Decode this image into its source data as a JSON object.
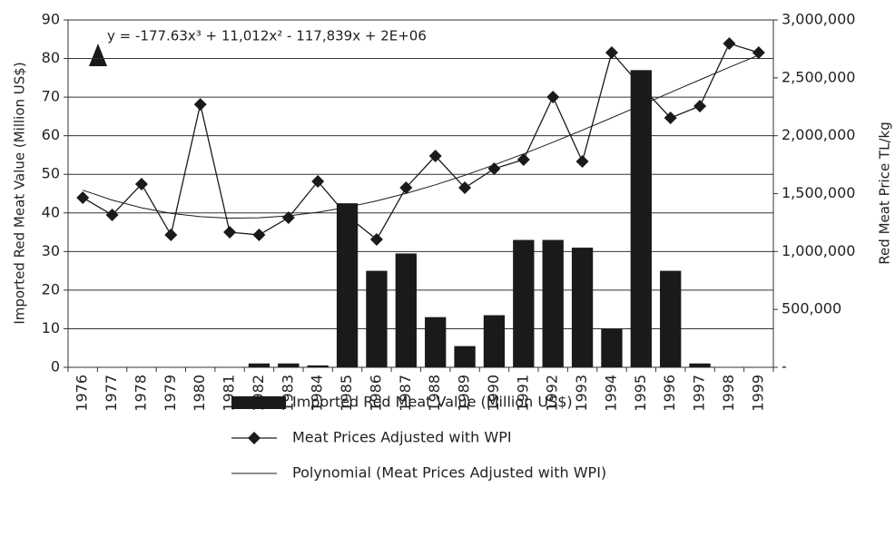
{
  "chart_data": {
    "type": "bar",
    "annotation": "y = -177.63x³ + 11,012x² - 117,839x + 2E+06",
    "ylabel": "Imported Red Meat Value (Million US$)",
    "y2label": "Red Meat Price TL/kg",
    "categories": [
      "1976",
      "1977",
      "1978",
      "1979",
      "1980",
      "1981",
      "1982",
      "1983",
      "1984",
      "1985",
      "1986",
      "1987",
      "1988",
      "1989",
      "1990",
      "1991",
      "1992",
      "1993",
      "1994",
      "1995",
      "1996",
      "1997",
      "1998",
      "1999"
    ],
    "series": [
      {
        "name": "Imported Red Meat Value (Million US$)",
        "type": "bar",
        "color": "#1a1a1a",
        "axis": "y",
        "values": [
          0,
          0,
          0,
          0,
          0,
          0,
          1,
          1,
          0.5,
          42.5,
          25,
          29.5,
          13,
          5.5,
          13.5,
          33,
          33,
          31,
          10,
          77,
          25,
          1,
          0,
          0
        ]
      },
      {
        "name": "Meat Prices Adjusted with WPI",
        "type": "line",
        "marker": "diamond",
        "color": "#1a1a1a",
        "axis": "y2",
        "values": [
          1465000,
          1316000,
          1582000,
          1144000,
          2271000,
          1167000,
          1144000,
          1292000,
          1606000,
          1308000,
          1104000,
          1551000,
          1825000,
          1551000,
          1715000,
          1794000,
          2334000,
          1778000,
          2718000,
          2428000,
          2154000,
          2256000,
          2796000,
          2718000
        ]
      },
      {
        "name": "Polynomial (Meat Prices Adjusted with WPI)",
        "type": "line",
        "color": "#1a1a1a",
        "axis": "y2",
        "values": [
          1530000,
          1444000,
          1378000,
          1330000,
          1301000,
          1288000,
          1291000,
          1308000,
          1339000,
          1382000,
          1437000,
          1502000,
          1576000,
          1658000,
          1748000,
          1843000,
          1944000,
          2048000,
          2155000,
          2264000,
          2374000,
          2483000,
          2591000,
          2696000
        ]
      }
    ],
    "ylim": [
      0,
      90
    ],
    "yticks": [
      0,
      10,
      20,
      30,
      40,
      50,
      60,
      70,
      80,
      90
    ],
    "y2lim": [
      0,
      3000000
    ],
    "y2ticks": [
      {
        "value": 0,
        "label": "-"
      },
      {
        "value": 500000,
        "label": "500,000"
      },
      {
        "value": 1000000,
        "label": "1,000,000"
      },
      {
        "value": 1500000,
        "label": "1,500,000"
      },
      {
        "value": 2000000,
        "label": "2,000,000"
      },
      {
        "value": 2500000,
        "label": "2,500,000"
      },
      {
        "value": 3000000,
        "label": "3,000,000"
      }
    ],
    "grid": true,
    "legend": "bottom"
  }
}
